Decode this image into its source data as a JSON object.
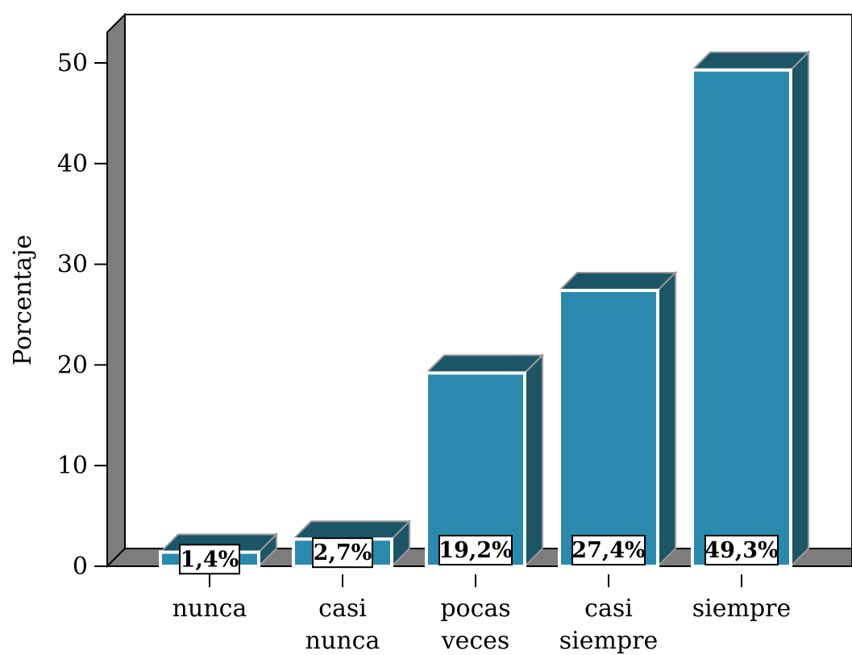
{
  "chart_data": {
    "type": "bar",
    "style": "3d",
    "categories": [
      "nunca",
      "casi nunca",
      "pocas veces",
      "casi siempre",
      "siempre"
    ],
    "category_lines": [
      [
        "nunca"
      ],
      [
        "casi",
        "nunca"
      ],
      [
        "pocas",
        "veces"
      ],
      [
        "casi",
        "siempre"
      ],
      [
        "siempre"
      ]
    ],
    "values": [
      1.4,
      2.7,
      19.2,
      27.4,
      49.3
    ],
    "data_labels": [
      "1,4%",
      "2,7%",
      "19,2%",
      "27,4%",
      "49,3%"
    ],
    "title": "",
    "xlabel": "",
    "ylabel": "Porcentaje",
    "ylim": [
      0,
      50
    ],
    "yticks": [
      0,
      10,
      20,
      30,
      40,
      50
    ],
    "grid": false,
    "legend": "none",
    "colors": {
      "bar_front": "#2a8aad",
      "bar_top": "#1c5566",
      "bar_side": "#1c5566",
      "bar_outline": "#ffffff",
      "wall": "#ffffff",
      "wall_left": "#7d7d7d",
      "floor": "#7d7d7d"
    }
  }
}
